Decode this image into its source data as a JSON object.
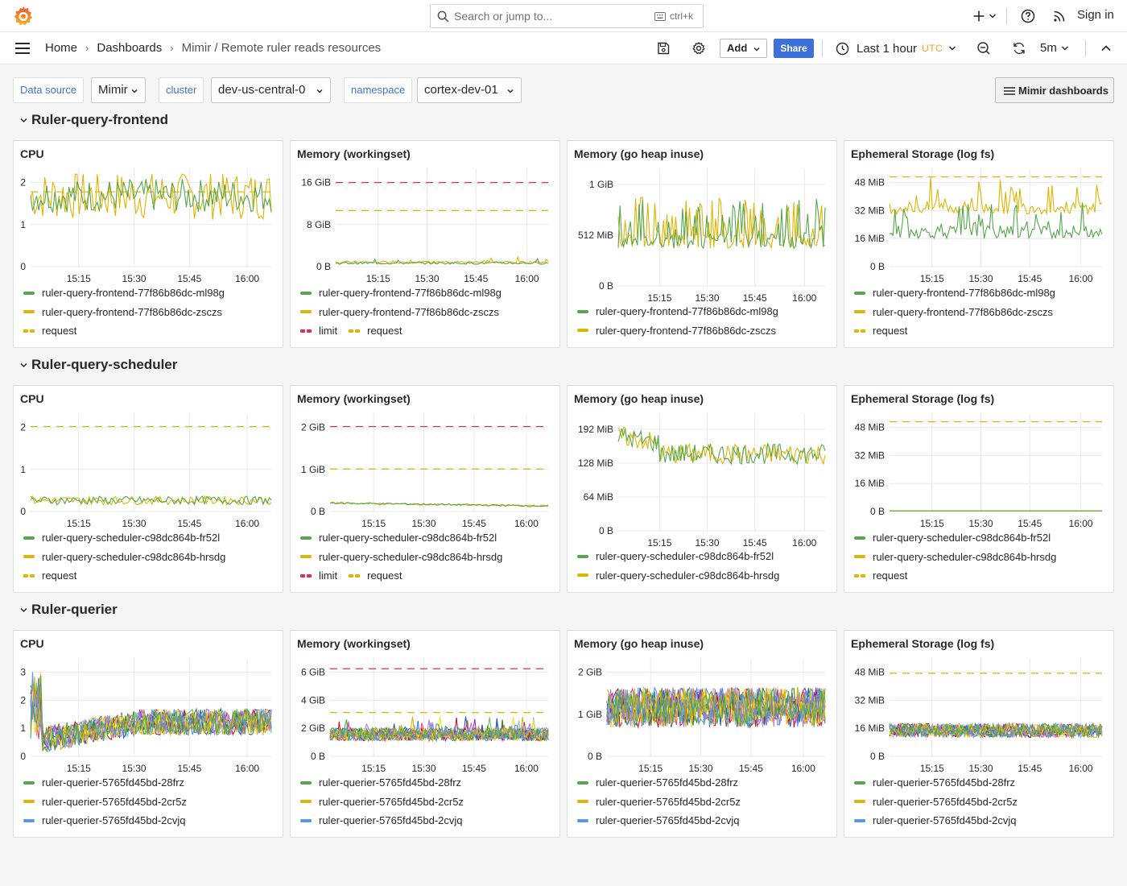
{
  "topbar": {
    "search_placeholder": "Search or jump to...",
    "search_shortcut": "ctrl+k",
    "sign_in": "Sign in"
  },
  "breadcrumbs": [
    "Home",
    "Dashboards",
    "Mimir / Remote ruler reads resources"
  ],
  "toolbar": {
    "add_label": "Add",
    "share_label": "Share",
    "time_range": "Last 1 hour",
    "timezone": "UTC",
    "refresh_interval": "5m"
  },
  "variables": [
    {
      "label": "Data source",
      "value": "Mimir"
    },
    {
      "label": "cluster",
      "value": "dev-us-central-0"
    },
    {
      "label": "namespace",
      "value": "cortex-dev-01"
    }
  ],
  "mimir_dashboards_label": "Mimir dashboards",
  "colors": {
    "green": "#56a64b",
    "yellow": "#e0b400",
    "blue": "#5794f2",
    "red": "#e02f44",
    "grid": "#e8e8e8"
  },
  "x_ticks": [
    "15:15",
    "15:30",
    "15:45",
    "16:00"
  ],
  "rows": [
    {
      "title": "Ruler-query-frontend",
      "panels": [
        {
          "title": "CPU",
          "yticks": [
            "0",
            "1",
            "2"
          ],
          "y_max": 2.5,
          "requests": {
            "request": 2.0
          },
          "legend": [
            [
              "ruler-query-frontend-77f86b86dc-ml98g",
              "green"
            ],
            [
              "ruler-query-frontend-77f86b86dc-zsczs",
              "yellow"
            ],
            [
              "request",
              "dash-yellow"
            ]
          ]
        },
        {
          "title": "Memory (workingset)",
          "yticks": [
            "0 B",
            "8 GiB",
            "16 GiB"
          ],
          "y_max": 20,
          "requests": {
            "limit": 18,
            "request": 12
          },
          "legend": [
            [
              "ruler-query-frontend-77f86b86dc-ml98g",
              "green"
            ],
            [
              "ruler-query-frontend-77f86b86dc-zsczs",
              "yellow"
            ],
            [
              "limit|request",
              "limit-request"
            ]
          ]
        },
        {
          "title": "Memory (go heap inuse)",
          "yticks": [
            "0 B",
            "512 MiB",
            "1 GiB"
          ],
          "y_max": 1.2,
          "legend": [
            [
              "ruler-query-frontend-77f86b86dc-ml98g",
              "green"
            ],
            [
              "ruler-query-frontend-77f86b86dc-zsczs",
              "yellow"
            ]
          ]
        },
        {
          "title": "Ephemeral Storage (log fs)",
          "yticks": [
            "0 B",
            "16 MiB",
            "32 MiB",
            "48 MiB"
          ],
          "y_max": 50,
          "requests": {
            "request": 48
          },
          "legend": [
            [
              "ruler-query-frontend-77f86b86dc-ml98g",
              "green"
            ],
            [
              "ruler-query-frontend-77f86b86dc-zsczs",
              "yellow"
            ],
            [
              "request",
              "dash-yellow"
            ]
          ]
        }
      ]
    },
    {
      "title": "Ruler-query-scheduler",
      "panels": [
        {
          "title": "CPU",
          "yticks": [
            "0",
            "1",
            "2"
          ],
          "y_max": 2.2,
          "requests": {
            "request": 2.0
          },
          "legend": [
            [
              "ruler-query-scheduler-c98dc864b-fr52l",
              "green"
            ],
            [
              "ruler-query-scheduler-c98dc864b-hrsdg",
              "yellow"
            ],
            [
              "request",
              "dash-yellow"
            ]
          ]
        },
        {
          "title": "Memory (workingset)",
          "yticks": [
            "0 B",
            "1 GiB",
            "2 GiB"
          ],
          "y_max": 2.2,
          "requests": {
            "limit": 2.0,
            "request": 1.0
          },
          "legend": [
            [
              "ruler-query-scheduler-c98dc864b-fr52l",
              "green"
            ],
            [
              "ruler-query-scheduler-c98dc864b-hrsdg",
              "yellow"
            ],
            [
              "limit|request",
              "limit-request"
            ]
          ]
        },
        {
          "title": "Memory (go heap inuse)",
          "yticks": [
            "0 B",
            "64 MiB",
            "128 MiB",
            "192 MiB"
          ],
          "y_max": 220,
          "legend": [
            [
              "ruler-query-scheduler-c98dc864b-fr52l",
              "green"
            ],
            [
              "ruler-query-scheduler-c98dc864b-hrsdg",
              "yellow"
            ]
          ]
        },
        {
          "title": "Ephemeral Storage (log fs)",
          "yticks": [
            "0 B",
            "16 MiB",
            "32 MiB",
            "48 MiB"
          ],
          "y_max": 50,
          "requests": {
            "request": 48
          },
          "legend": [
            [
              "ruler-query-scheduler-c98dc864b-fr52l",
              "green"
            ],
            [
              "ruler-query-scheduler-c98dc864b-hrsdg",
              "yellow"
            ],
            [
              "request",
              "dash-yellow"
            ]
          ]
        }
      ]
    },
    {
      "title": "Ruler-querier",
      "panels": [
        {
          "title": "CPU",
          "yticks": [
            "0",
            "1",
            "2",
            "3"
          ],
          "y_max": 3.2,
          "legend": [
            [
              "ruler-querier-5765fd45bd-28frz",
              "green"
            ],
            [
              "ruler-querier-5765fd45bd-2cr5z",
              "yellow"
            ],
            [
              "ruler-querier-5765fd45bd-2cvjq",
              "blue"
            ]
          ]
        },
        {
          "title": "Memory (workingset)",
          "yticks": [
            "0 B",
            "2 GiB",
            "4 GiB",
            "6 GiB"
          ],
          "y_max": 6.4,
          "requests": {
            "limit": 6.0,
            "request": 3.0
          },
          "legend": [
            [
              "ruler-querier-5765fd45bd-28frz",
              "green"
            ],
            [
              "ruler-querier-5765fd45bd-2cr5z",
              "yellow"
            ],
            [
              "ruler-querier-5765fd45bd-2cvjq",
              "blue"
            ]
          ]
        },
        {
          "title": "Memory (go heap inuse)",
          "yticks": [
            "0 B",
            "1 GiB",
            "2 GiB"
          ],
          "y_max": 2.1,
          "legend": [
            [
              "ruler-querier-5765fd45bd-28frz",
              "green"
            ],
            [
              "ruler-querier-5765fd45bd-2cr5z",
              "yellow"
            ],
            [
              "ruler-querier-5765fd45bd-2cvjq",
              "blue"
            ]
          ]
        },
        {
          "title": "Ephemeral Storage (log fs)",
          "yticks": [
            "0 B",
            "16 MiB",
            "32 MiB",
            "48 MiB"
          ],
          "y_max": 54,
          "requests": {
            "request": 48
          },
          "legend": [
            [
              "ruler-querier-5765fd45bd-28frz",
              "green"
            ],
            [
              "ruler-querier-5765fd45bd-2cr5z",
              "yellow"
            ],
            [
              "ruler-querier-5765fd45bd-2cvjq",
              "blue"
            ]
          ]
        }
      ]
    }
  ]
}
